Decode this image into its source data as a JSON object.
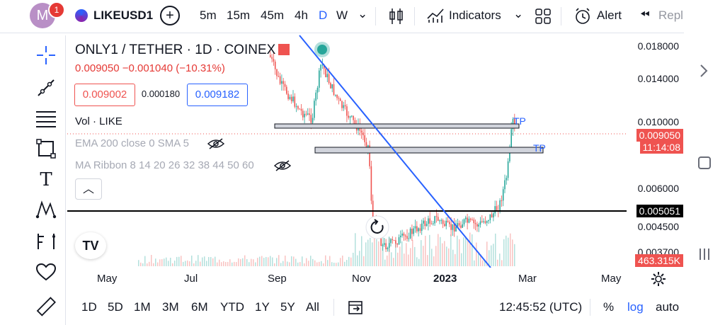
{
  "header": {
    "avatar_letter": "M",
    "notification_count": "1",
    "symbol": "LIKEUSD1",
    "intervals": [
      "5m",
      "15m",
      "45m",
      "4h",
      "D",
      "W"
    ],
    "active_interval": "D",
    "indicators_label": "Indicators",
    "alert_label": "Alert",
    "replay_label": "Repl"
  },
  "legend": {
    "title": "ONLY1 / TETHER · 1D · COINEX",
    "price_line": "0.009050  −0.001040 (−10.31%)",
    "bid": "0.009002",
    "spread": "0.000180",
    "ask": "0.009182",
    "vol": "Vol · LIKE",
    "ema": "EMA 200 close 0 SMA 5",
    "ribbon": "MA Ribbon 8 14 20 26 32 38 44 50 60"
  },
  "price_axis": {
    "ticks": [
      "0.018000",
      "0.014000",
      "0.010000",
      "0.006000",
      "0.004500",
      "0.003700"
    ],
    "last_price": "0.009050",
    "countdown": "11:14:08",
    "hline_price": "0.005051",
    "volume_label": "463.315K"
  },
  "annotations": {
    "tp1": "TP",
    "tp2": "TP"
  },
  "time_axis": {
    "labels": [
      "May",
      "Jul",
      "Sep",
      "Nov",
      "2023",
      "Mar",
      "May"
    ]
  },
  "bottom": {
    "ranges": [
      "1D",
      "5D",
      "1M",
      "3M",
      "6M",
      "YTD",
      "1Y",
      "5Y",
      "All"
    ],
    "clock": "12:45:52 (UTC)",
    "percent": "%",
    "log": "log",
    "auto": "auto"
  },
  "colors": {
    "up": "#26a69a",
    "down": "#ef5350",
    "trend": "#2962ff",
    "accent": "#2962ff"
  }
}
